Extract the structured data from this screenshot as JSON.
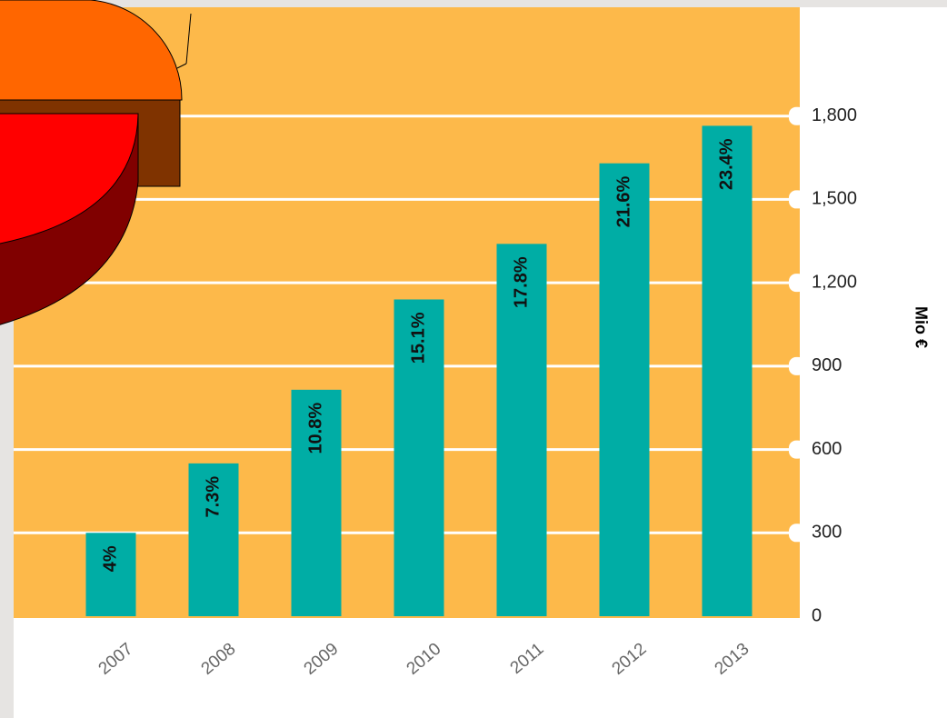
{
  "chart_data": {
    "type": "bar",
    "categories": [
      "2007",
      "2008",
      "2009",
      "2010",
      "2011",
      "2012",
      "2013"
    ],
    "values": [
      300,
      550,
      815,
      1140,
      1340,
      1630,
      1765
    ],
    "annotations": [
      "4%",
      "7.3%",
      "10.8%",
      "15.1%",
      "17.8%",
      "21.6%",
      "23.4%"
    ],
    "color": "#00ada5",
    "background": "#fdb94a",
    "y_label": "Mio €",
    "ylim": [
      0,
      2100
    ],
    "yticks": [
      0,
      300,
      600,
      900,
      {
        "value": 1200,
        "label": "1,200"
      },
      {
        "value": 1500,
        "label": "1,500"
      },
      {
        "value": 1800,
        "label": "1,800"
      }
    ],
    "grid": true
  }
}
